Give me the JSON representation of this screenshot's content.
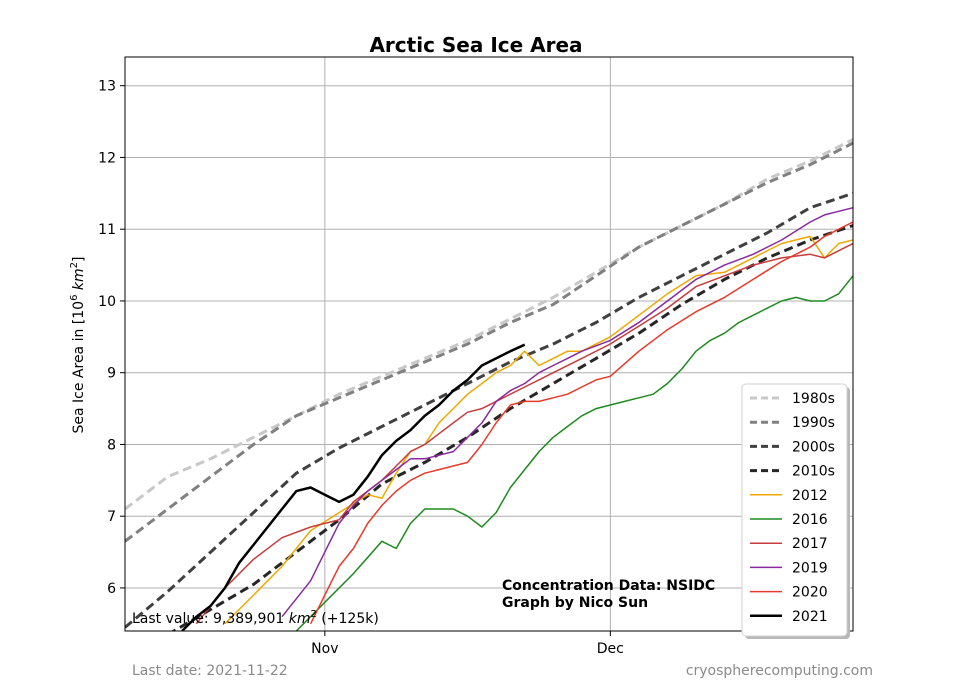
{
  "footer": {
    "last_date": "Last date: 2021-11-22",
    "site": "cryospherecomputing.com"
  },
  "chart_data": {
    "type": "line",
    "title": "Arctic Sea Ice Area",
    "ylabel_prefix": "Sea Ice Area in [10",
    "ylabel_sup1": "6",
    "ylabel_mid": " km",
    "ylabel_sup2": "2",
    "ylabel_suffix": "]",
    "xlim": [
      0,
      51
    ],
    "ylim": [
      5.4,
      13.4
    ],
    "yticks": [
      6,
      7,
      8,
      9,
      10,
      11,
      12,
      13
    ],
    "xticks": [
      {
        "label": "Nov",
        "x": 14
      },
      {
        "label": "Dec",
        "x": 34
      }
    ],
    "grid": true,
    "legend_position": "lower-right",
    "annotation_lines": [
      "Concentration Data: NSIDC",
      "Graph by Nico Sun"
    ],
    "last_value": {
      "prefix": "Last value: 9,389,901 ",
      "unit": "km",
      "sup": "2",
      "suffix": " (+125k)"
    },
    "series": [
      {
        "name": "1980s",
        "color": "#c8c8c8",
        "dash": "9,5",
        "width": 3,
        "x": [
          0,
          3,
          6,
          9,
          12,
          15,
          18,
          21,
          24,
          27,
          30,
          33,
          36,
          39,
          42,
          45,
          48,
          51
        ],
        "y": [
          7.1,
          7.55,
          7.8,
          8.1,
          8.4,
          8.7,
          8.95,
          9.2,
          9.45,
          9.75,
          10.05,
          10.4,
          10.75,
          11.05,
          11.35,
          11.7,
          11.95,
          12.25
        ]
      },
      {
        "name": "1990s",
        "color": "#808080",
        "dash": "9,5",
        "width": 3,
        "x": [
          0,
          3,
          6,
          9,
          12,
          15,
          18,
          21,
          24,
          27,
          30,
          33,
          36,
          39,
          42,
          45,
          48,
          51
        ],
        "y": [
          6.65,
          7.1,
          7.55,
          8.0,
          8.4,
          8.65,
          8.9,
          9.15,
          9.4,
          9.7,
          9.95,
          10.35,
          10.75,
          11.05,
          11.35,
          11.65,
          11.9,
          12.2
        ]
      },
      {
        "name": "2000s",
        "color": "#404040",
        "dash": "9,5",
        "width": 3,
        "x": [
          0,
          3,
          6,
          9,
          12,
          15,
          18,
          21,
          24,
          27,
          30,
          33,
          36,
          39,
          42,
          45,
          48,
          51
        ],
        "y": [
          5.45,
          5.95,
          6.5,
          7.05,
          7.6,
          7.95,
          8.25,
          8.55,
          8.85,
          9.15,
          9.4,
          9.7,
          10.05,
          10.35,
          10.65,
          10.95,
          11.3,
          11.5
        ]
      },
      {
        "name": "2010s",
        "color": "#262626",
        "dash": "9,5",
        "width": 3,
        "x": [
          3,
          6,
          9,
          12,
          15,
          18,
          21,
          24,
          27,
          30,
          33,
          36,
          39,
          42,
          45,
          48,
          51
        ],
        "y": [
          5.35,
          5.7,
          6.05,
          6.5,
          6.95,
          7.45,
          7.75,
          8.1,
          8.5,
          8.85,
          9.2,
          9.55,
          9.95,
          10.3,
          10.6,
          10.85,
          11.05
        ]
      },
      {
        "name": "2012",
        "color": "#f0a800",
        "dash": "",
        "width": 1.5,
        "x": [
          7,
          9,
          11,
          13,
          15,
          17,
          18,
          19,
          20,
          21,
          22,
          23,
          24,
          25,
          26,
          27,
          28,
          29,
          30,
          31,
          32,
          34,
          36,
          38,
          40,
          42,
          44,
          46,
          48,
          49,
          50,
          51
        ],
        "y": [
          5.5,
          5.9,
          6.3,
          6.8,
          7.05,
          7.3,
          7.25,
          7.6,
          7.9,
          8.0,
          8.3,
          8.5,
          8.7,
          8.85,
          9.0,
          9.1,
          9.3,
          9.1,
          9.2,
          9.3,
          9.3,
          9.5,
          9.8,
          10.1,
          10.35,
          10.4,
          10.6,
          10.8,
          10.9,
          10.6,
          10.8,
          10.85
        ]
      },
      {
        "name": "2016",
        "color": "#1f8a1f",
        "dash": "",
        "width": 1.5,
        "x": [
          12,
          14,
          16,
          18,
          19,
          20,
          21,
          22,
          23,
          24,
          25,
          26,
          27,
          28,
          29,
          30,
          31,
          32,
          33,
          34,
          35,
          36,
          37,
          38,
          39,
          40,
          41,
          42,
          43,
          44,
          45,
          46,
          47,
          48,
          49,
          50,
          51
        ],
        "y": [
          5.4,
          5.8,
          6.2,
          6.65,
          6.55,
          6.9,
          7.1,
          7.1,
          7.1,
          7.0,
          6.85,
          7.05,
          7.4,
          7.65,
          7.9,
          8.1,
          8.25,
          8.4,
          8.5,
          8.55,
          8.6,
          8.65,
          8.7,
          8.85,
          9.05,
          9.3,
          9.45,
          9.55,
          9.7,
          9.8,
          9.9,
          10.0,
          10.05,
          10.0,
          10.0,
          10.1,
          10.35
        ]
      },
      {
        "name": "2017",
        "color": "#c83c3c",
        "dash": "",
        "width": 1.5,
        "x": [
          5,
          7,
          9,
          11,
          13,
          14,
          15,
          16,
          17,
          18,
          19,
          20,
          21,
          22,
          23,
          24,
          25,
          26,
          27,
          28,
          29,
          30,
          32,
          34,
          36,
          38,
          40,
          42,
          44,
          46,
          48,
          49,
          50,
          51
        ],
        "y": [
          5.5,
          6.0,
          6.4,
          6.7,
          6.85,
          6.9,
          6.95,
          7.2,
          7.35,
          7.5,
          7.7,
          7.9,
          8.0,
          8.15,
          8.3,
          8.45,
          8.5,
          8.6,
          8.7,
          8.8,
          8.9,
          9.0,
          9.2,
          9.4,
          9.65,
          9.9,
          10.2,
          10.35,
          10.5,
          10.6,
          10.65,
          10.6,
          10.7,
          10.8
        ]
      },
      {
        "name": "2019",
        "color": "#8a2aa0",
        "dash": "",
        "width": 1.5,
        "x": [
          11,
          13,
          14,
          15,
          16,
          17,
          18,
          19,
          20,
          21,
          22,
          23,
          24,
          25,
          26,
          27,
          28,
          29,
          30,
          31,
          32,
          34,
          36,
          38,
          40,
          42,
          44,
          46,
          48,
          49,
          50,
          51
        ],
        "y": [
          5.6,
          6.1,
          6.5,
          6.9,
          7.15,
          7.35,
          7.5,
          7.65,
          7.8,
          7.8,
          7.85,
          7.9,
          8.1,
          8.3,
          8.6,
          8.75,
          8.85,
          9.0,
          9.1,
          9.2,
          9.3,
          9.45,
          9.7,
          10.0,
          10.3,
          10.5,
          10.65,
          10.85,
          11.1,
          11.2,
          11.25,
          11.3
        ]
      },
      {
        "name": "2020",
        "color": "#e83a2a",
        "dash": "",
        "width": 1.5,
        "x": [
          13,
          14,
          15,
          16,
          17,
          18,
          19,
          20,
          21,
          22,
          23,
          24,
          25,
          26,
          27,
          28,
          29,
          30,
          31,
          32,
          33,
          34,
          36,
          38,
          40,
          42,
          44,
          46,
          48,
          49,
          50,
          51
        ],
        "y": [
          5.5,
          5.9,
          6.3,
          6.55,
          6.9,
          7.15,
          7.35,
          7.5,
          7.6,
          7.65,
          7.7,
          7.75,
          8.0,
          8.3,
          8.55,
          8.6,
          8.6,
          8.65,
          8.7,
          8.8,
          8.9,
          8.95,
          9.3,
          9.6,
          9.85,
          10.05,
          10.3,
          10.55,
          10.75,
          10.9,
          11.0,
          11.1
        ]
      },
      {
        "name": "2021",
        "color": "#000000",
        "dash": "",
        "width": 2.5,
        "x": [
          4,
          5,
          6,
          7,
          8,
          9,
          10,
          11,
          12,
          13,
          14,
          15,
          16,
          17,
          18,
          19,
          20,
          21,
          22,
          23,
          24,
          25,
          26,
          27,
          28
        ],
        "y": [
          5.4,
          5.6,
          5.75,
          6.0,
          6.35,
          6.6,
          6.85,
          7.1,
          7.35,
          7.4,
          7.3,
          7.2,
          7.3,
          7.55,
          7.85,
          8.05,
          8.2,
          8.4,
          8.55,
          8.75,
          8.9,
          9.1,
          9.2,
          9.3,
          9.39
        ]
      }
    ]
  }
}
